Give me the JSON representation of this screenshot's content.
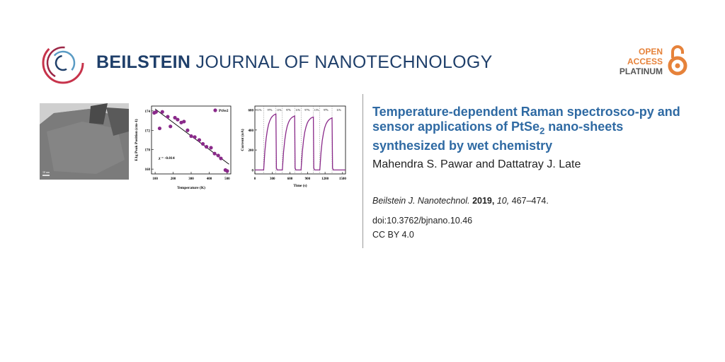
{
  "header": {
    "journal_bold": "BEILSTEIN",
    "journal_rest": "JOURNAL OF NANOTECHNOLOGY",
    "oa_line1": "OPEN",
    "oa_line2": "ACCESS",
    "oa_line3": "PLATINUM"
  },
  "article": {
    "title_part1": "Temperature-dependent Raman spectrosco-py and sensor applications of PtSe",
    "title_sub": "2",
    "title_part2": " nano-sheets synthesized by wet chemistry",
    "authors": "Mahendra S. Pawar and Dattatray J. Late",
    "citation_journal": "Beilstein J. Nanotechnol.",
    "citation_year": "2019,",
    "citation_volume": "10,",
    "citation_pages": "467–474.",
    "doi": "doi:10.3762/bjnano.10.46",
    "license": "CC BY 4.0"
  },
  "graphic": {
    "tem_scale": "10 nm",
    "colors": {
      "brand": "#1f3f6a",
      "title": "#2f6aa3",
      "oa": "#e6823a",
      "plot": "#8a2a8a"
    }
  },
  "chart_data": [
    {
      "type": "scatter",
      "xlabel": "Temperature (K)",
      "ylabel": "E1g Peak Position (cm-1)",
      "legend": "PtSe2",
      "annotation": "χ = -0.014",
      "xlim": [
        80,
        520
      ],
      "ylim": [
        167.5,
        174.5
      ],
      "x_ticks": [
        "100",
        "200",
        "300",
        "400",
        "500"
      ],
      "y_ticks": [
        "168",
        "170",
        "172",
        "174"
      ],
      "x": [
        95,
        105,
        125,
        140,
        170,
        185,
        210,
        225,
        245,
        260,
        280,
        300,
        320,
        345,
        365,
        385,
        410,
        430,
        450,
        465,
        490,
        500
      ],
      "y": [
        173.8,
        173.9,
        172.2,
        173.9,
        173.4,
        172.4,
        173.3,
        173.1,
        172.8,
        172.9,
        172.0,
        171.4,
        171.3,
        171.0,
        170.6,
        170.3,
        170.2,
        169.6,
        169.4,
        169.1,
        167.9,
        167.8
      ],
      "fit_line": {
        "x": [
          100,
          510
        ],
        "y": [
          174.2,
          168.5
        ]
      }
    },
    {
      "type": "line",
      "xlabel": "Time (s)",
      "ylabel": "Current (nA)",
      "xlim": [
        0,
        1550
      ],
      "ylim": [
        -40,
        640
      ],
      "x_ticks": [
        "0",
        "300",
        "600",
        "900",
        "1200",
        "1500"
      ],
      "y_ticks": [
        "0",
        "200",
        "400",
        "600"
      ],
      "annotations": [
        "11%",
        "97%",
        "11%",
        "97%",
        "11%",
        "97%",
        "11%",
        "97%",
        "11%",
        "97%",
        "11%"
      ],
      "cycles": [
        {
          "on": 150,
          "off": 360,
          "peak": 560
        },
        {
          "on": 470,
          "off": 680,
          "peak": 540
        },
        {
          "on": 790,
          "off": 1000,
          "peak": 530
        },
        {
          "on": 1110,
          "off": 1320,
          "peak": 520
        }
      ],
      "baseline": 0
    }
  ]
}
